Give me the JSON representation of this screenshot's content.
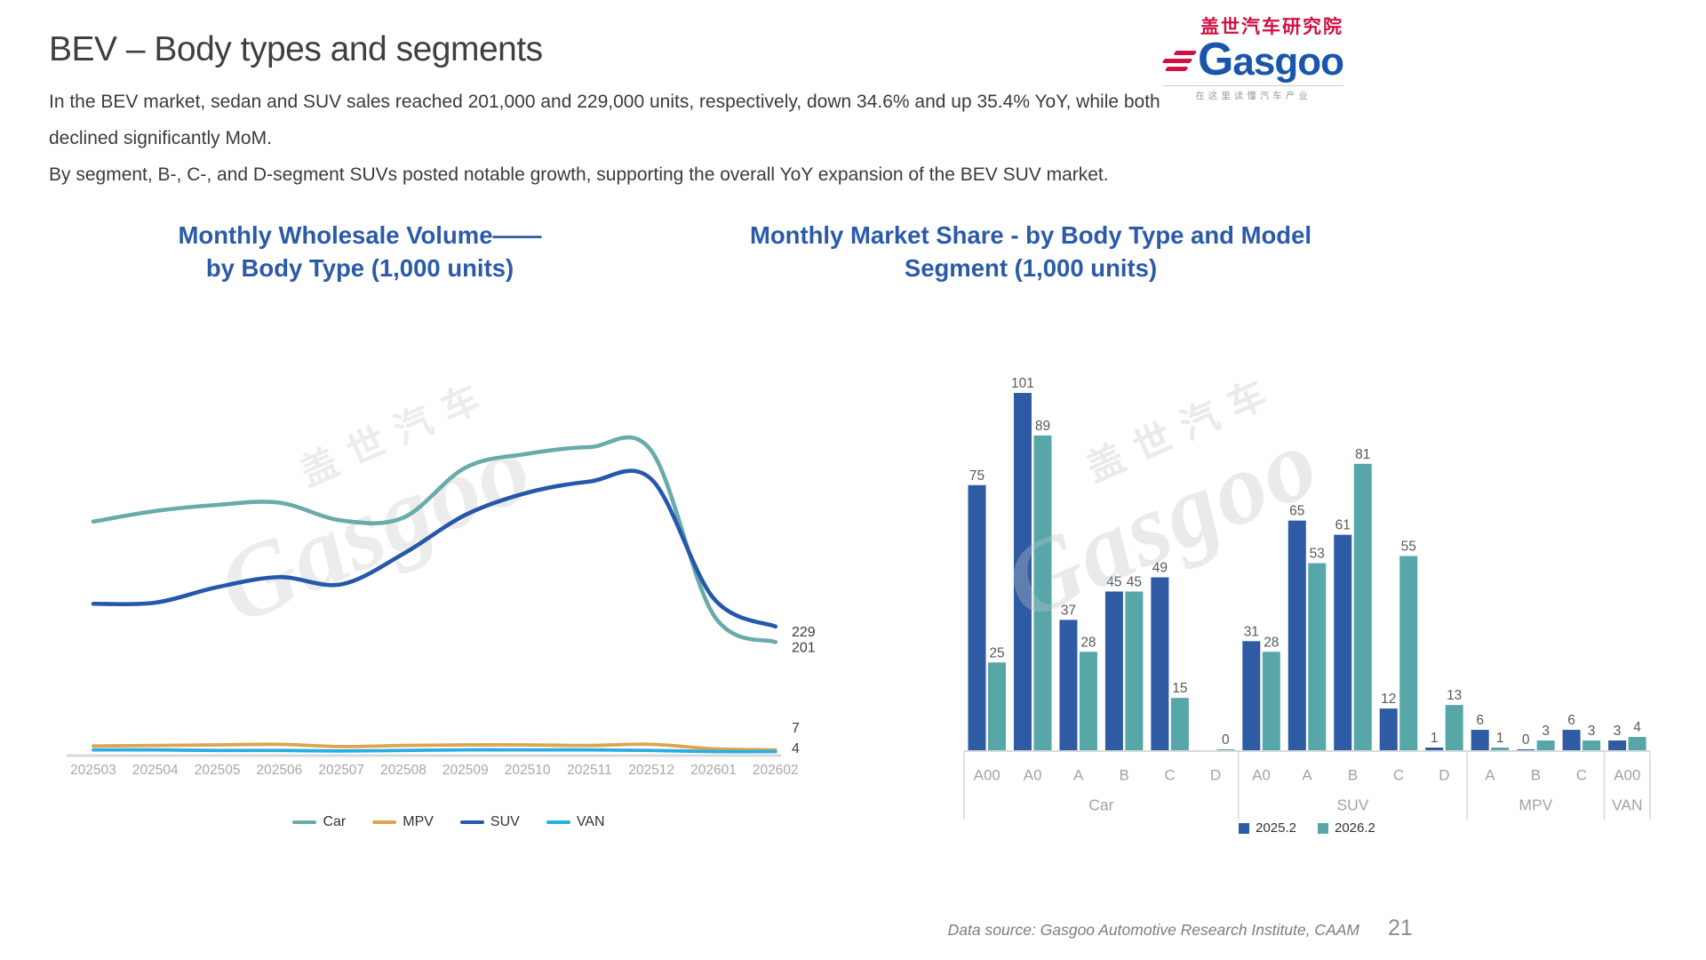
{
  "header": {
    "title": "BEV – Body types and segments",
    "subtitle_lines": [
      "In the BEV market, sedan and SUV sales reached 201,000 and 229,000 units, respectively, down 34.6% and up 35.4% YoY, while both",
      "declined significantly MoM.",
      "By segment, B-, C-, and D-segment SUVs posted notable growth, supporting the overall YoY expansion of the BEV SUV market."
    ]
  },
  "logo": {
    "cn": "盖世汽车研究院",
    "en": "Gasgoo",
    "tagline": "在这里读懂汽车产业",
    "red": "#d01141",
    "blue": "#1a55ad"
  },
  "watermark": {
    "cn": "盖世汽车",
    "en": "Gasgoo"
  },
  "footer": {
    "data_source": "Data source: Gasgoo Automotive Research Institute, CAAM",
    "page_number": "21"
  },
  "chart_data": [
    {
      "type": "line",
      "title_lines": [
        "Monthly Wholesale Volume——",
        "by Body Type (1,000 units)"
      ],
      "categories": [
        "202503",
        "202504",
        "202505",
        "202506",
        "202507",
        "202508",
        "202509",
        "202510",
        "202511",
        "202512",
        "202601",
        "202602"
      ],
      "series": [
        {
          "name": "Car",
          "color": "#68abaa",
          "values": [
            418,
            437,
            448,
            452,
            420,
            425,
            515,
            540,
            552,
            545,
            250,
            201
          ],
          "end_label": "201"
        },
        {
          "name": "MPV",
          "color": "#dca54e",
          "values": [
            14,
            15,
            16,
            17,
            13,
            15,
            16,
            16,
            15,
            17,
            9,
            7
          ],
          "end_label": "7"
        },
        {
          "name": "SUV",
          "color": "#2557aa",
          "values": [
            270,
            272,
            300,
            318,
            305,
            360,
            430,
            470,
            490,
            494,
            280,
            229
          ],
          "end_label": "229"
        },
        {
          "name": "VAN",
          "color": "#29ade3",
          "values": [
            7,
            7,
            6,
            6,
            5,
            6,
            7,
            7,
            7,
            6,
            4,
            4
          ],
          "end_label": "4"
        }
      ],
      "ylim": [
        0,
        620
      ],
      "grid": false,
      "yaxis_visible": false,
      "legend_position": "bottom",
      "note": "Only the final data points are labeled on the chart (SUV 229, Car 201, MPV 7, VAN 4); other values are estimated from line positions."
    },
    {
      "type": "bar",
      "title_lines": [
        "Monthly Market Share - by Body Type and Model",
        "Segment (1,000 units)"
      ],
      "series": [
        {
          "name": "2025.2",
          "color": "#2e5ba3"
        },
        {
          "name": "2026.2",
          "color": "#57a7a9"
        }
      ],
      "sections": [
        {
          "name": "Car",
          "categories": [
            "A00",
            "A0",
            "A",
            "B",
            "C",
            "D"
          ],
          "s2025": [
            75,
            101,
            37,
            45,
            49,
            null
          ],
          "s2026": [
            25,
            89,
            28,
            45,
            15,
            0
          ]
        },
        {
          "name": "SUV",
          "categories": [
            "A0",
            "A",
            "B",
            "C",
            "D"
          ],
          "s2025": [
            31,
            65,
            61,
            12,
            1
          ],
          "s2026": [
            28,
            53,
            81,
            55,
            13
          ]
        },
        {
          "name": "MPV",
          "categories": [
            "A",
            "B",
            "C"
          ],
          "s2025": [
            6,
            0,
            6
          ],
          "s2026": [
            1,
            3,
            3
          ]
        },
        {
          "name": "VAN",
          "categories": [
            "A00"
          ],
          "s2025": [
            3
          ],
          "s2026": [
            4
          ]
        }
      ],
      "ylim": [
        0,
        110
      ],
      "grid": false,
      "yaxis_visible": false,
      "legend_position": "bottom"
    }
  ]
}
